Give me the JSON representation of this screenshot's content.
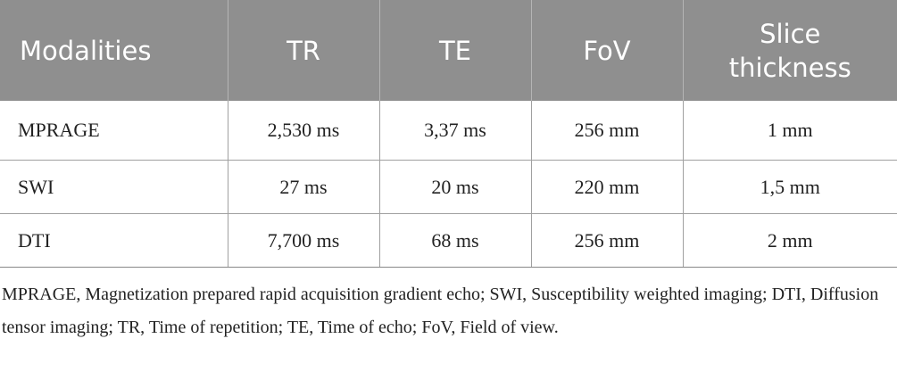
{
  "table": {
    "header": [
      "Modalities",
      "TR",
      "TE",
      "FoV",
      "Slice thickness"
    ],
    "rows": [
      [
        "MPRAGE",
        "2,530 ms",
        "3,37 ms",
        "256 mm",
        "1 mm"
      ],
      [
        "SWI",
        "27 ms",
        "20 ms",
        "220 mm",
        "1,5 mm"
      ],
      [
        "DTI",
        "7,700 ms",
        "68 ms",
        "256 mm",
        "2 mm"
      ]
    ]
  },
  "footnote": "MPRAGE, Magnetization prepared rapid acquisition gradient echo; SWI, Susceptibility weighted imaging; DTI, Diffusion tensor imaging; TR, Time of repetition; TE, Time of echo; FoV, Field of view."
}
